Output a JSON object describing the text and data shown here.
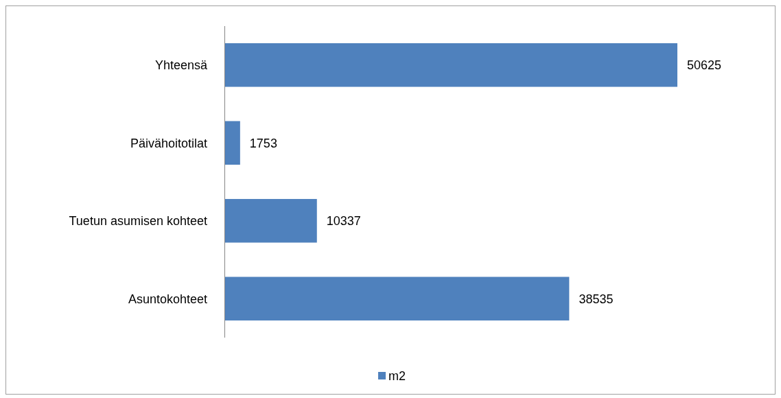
{
  "chart_data": {
    "type": "bar",
    "orientation": "horizontal",
    "categories": [
      "Yhteensä",
      "Päivähoitotilat",
      "Tuetun asumisen kohteet",
      "Asuntokohteet"
    ],
    "series": [
      {
        "name": "m2",
        "color": "#4f81bd",
        "values": [
          50625,
          1753,
          10337,
          38535
        ]
      }
    ],
    "data_labels": true,
    "legend": "bottom"
  }
}
